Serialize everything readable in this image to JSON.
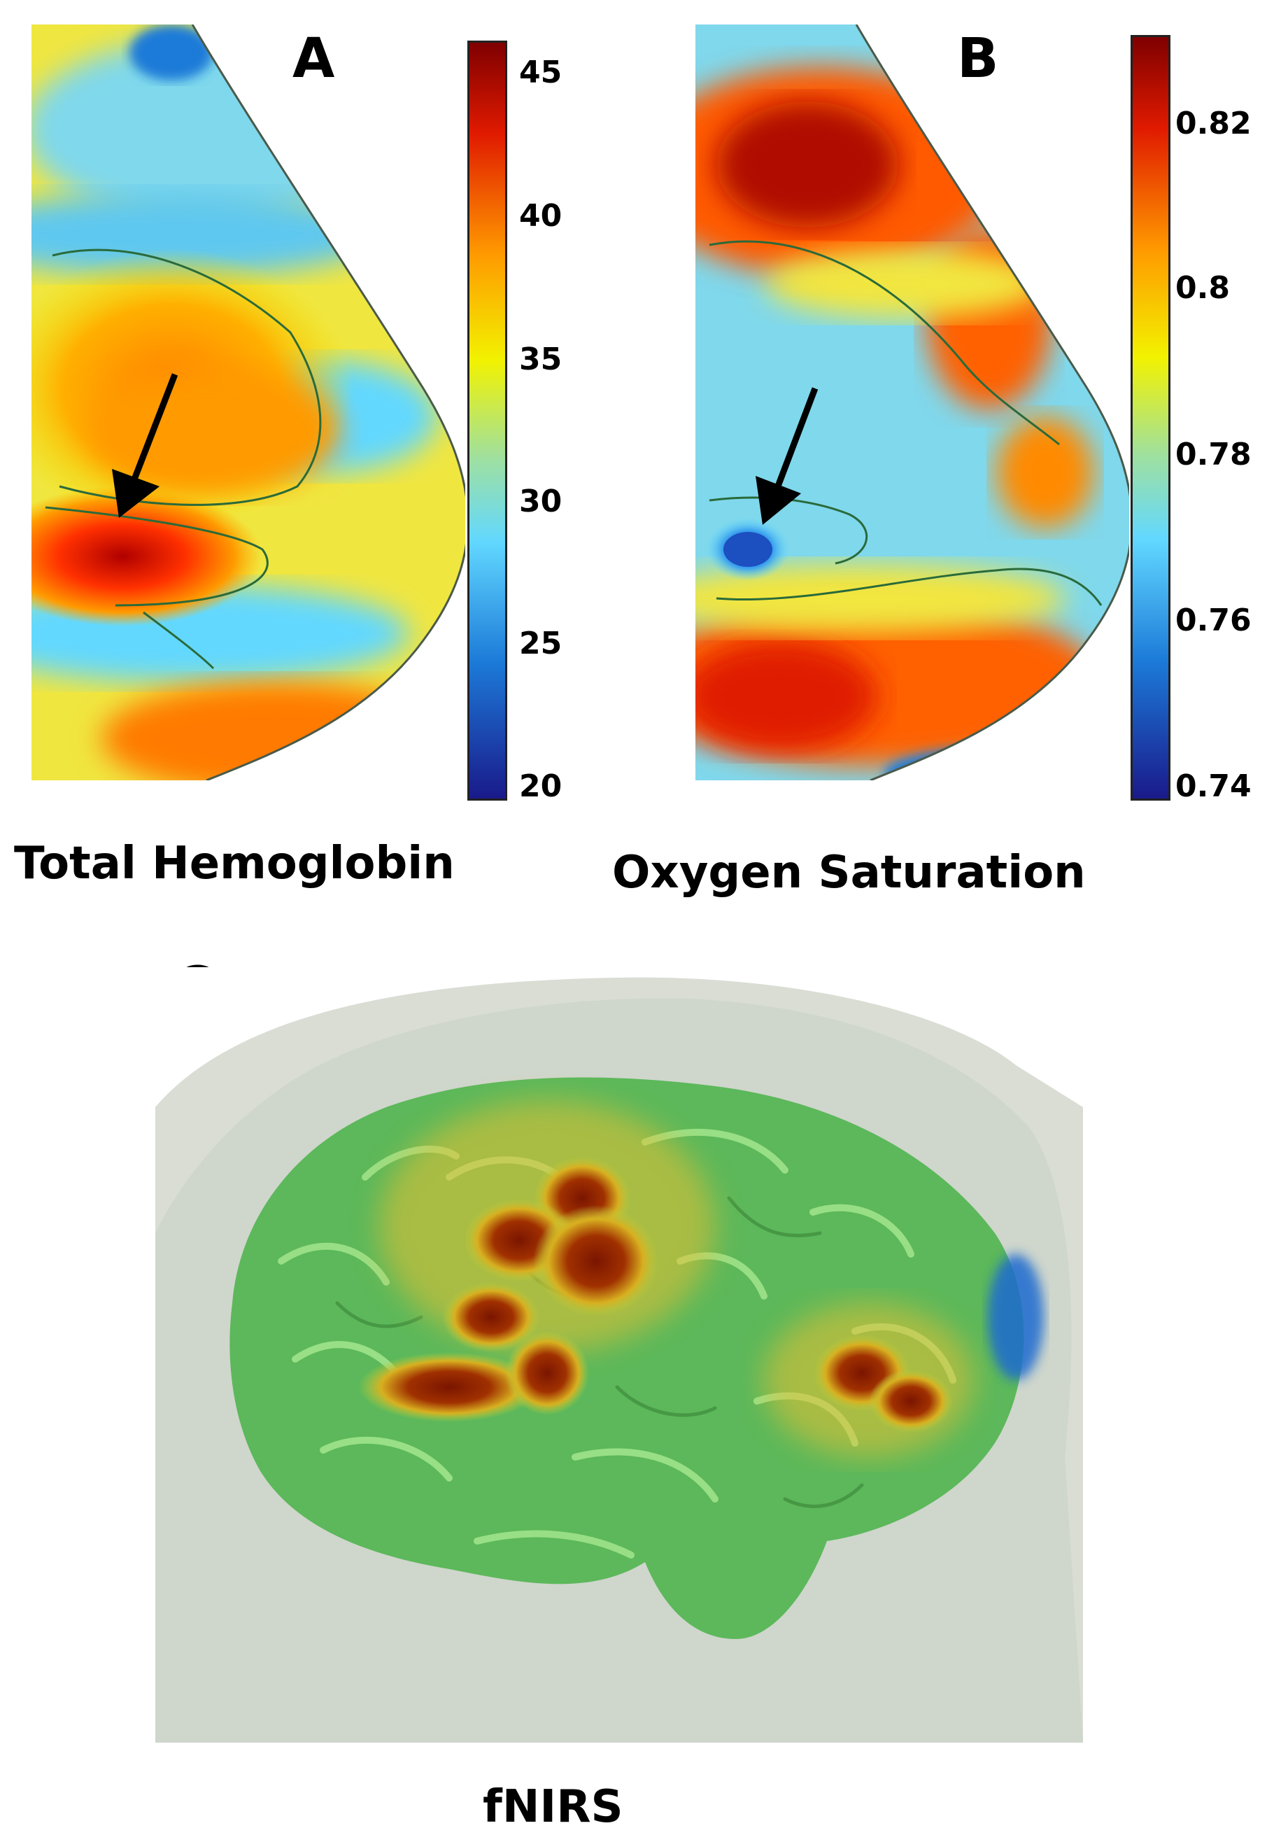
{
  "panels": {
    "a": {
      "letter": "A",
      "caption": "Total Hemoglobin",
      "colorbar_ticks": [
        "45",
        "40",
        "35",
        "30",
        "25",
        "20"
      ]
    },
    "b": {
      "letter": "B",
      "caption": "Oxygen Saturation",
      "colorbar_ticks": [
        "0.82",
        "0.8",
        "0.78",
        "0.76",
        "0.74"
      ]
    },
    "c": {
      "letter": "C",
      "caption": "fNIRS"
    }
  },
  "colors": {
    "colormap_top": "#7f0000",
    "colormap_high": "#ff3a00",
    "colormap_mid_high": "#ffb000",
    "colormap_mid": "#f2f200",
    "colormap_mid_low": "#62d8ff",
    "colormap_low": "#1c7ad8",
    "colormap_bottom": "#1a1a8a",
    "brain_green": "#5cb85a",
    "head_grey": "#cfd6cc"
  },
  "icons": [
    "arrow-icon"
  ]
}
